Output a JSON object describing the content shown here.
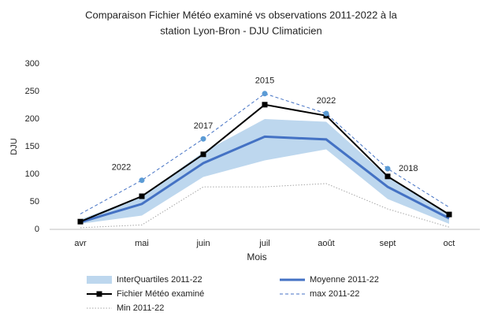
{
  "chart_data": {
    "type": "line",
    "title": [
      "Comparaison Fichier Météo examiné vs observations 2011-2022 à la",
      "station Lyon-Bron - DJU Climaticien"
    ],
    "x_label": "Mois",
    "y_label": "DJU",
    "categories": [
      "avr",
      "mai",
      "juin",
      "juil",
      "août",
      "sept",
      "oct"
    ],
    "ylim": [
      0,
      300
    ],
    "yticks": [
      0,
      50,
      100,
      150,
      200,
      250,
      300
    ],
    "band": {
      "name": "InterQuartiles 2011-22",
      "color": "#bdd7ee",
      "lower": [
        10,
        25,
        95,
        125,
        145,
        55,
        10
      ],
      "upper": [
        18,
        60,
        140,
        200,
        195,
        95,
        25
      ]
    },
    "series": [
      {
        "name": "Moyenne 2011-22",
        "color": "#4472c4",
        "style": "solid",
        "width": 3,
        "values": [
          13,
          46,
          120,
          168,
          163,
          77,
          20
        ]
      },
      {
        "name": "Fichier Météo examiné",
        "color": "#000000",
        "style": "solid",
        "width": 2,
        "marker": "square",
        "values": [
          14,
          60,
          136,
          226,
          206,
          96,
          27
        ]
      },
      {
        "name": "max 2011-22",
        "color": "#4472c4",
        "style": "dashed",
        "width": 1,
        "values": [
          28,
          89,
          164,
          246,
          210,
          110,
          40
        ],
        "point_labels": [
          null,
          "2022",
          "2017",
          "2015",
          "2022",
          "2018",
          null
        ]
      },
      {
        "name": "Min 2011-22",
        "color": "#a6a6a6",
        "style": "dotted",
        "width": 1,
        "values": [
          3,
          8,
          77,
          77,
          83,
          37,
          4
        ]
      }
    ]
  }
}
